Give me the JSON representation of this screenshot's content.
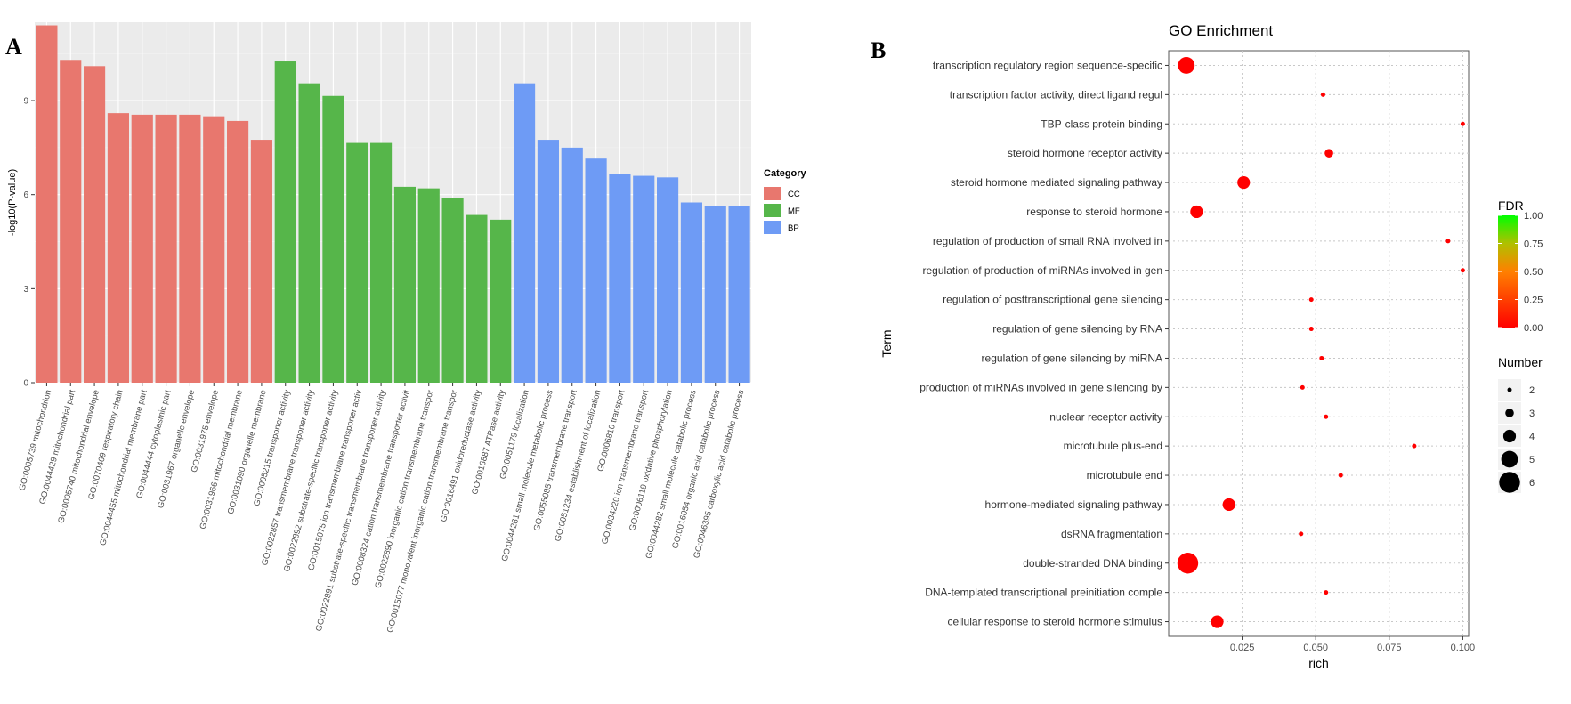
{
  "panel_labels": {
    "a": "A",
    "b": "B"
  },
  "chart_data": [
    {
      "type": "bar",
      "panel": "A",
      "title": "",
      "xlabel": "",
      "ylabel": "-log10(P-value)",
      "ylim": [
        0,
        11.5
      ],
      "yticks": [
        0,
        3,
        6,
        9
      ],
      "grid": true,
      "legend": {
        "title": "Category",
        "placement": "right",
        "entries": [
          {
            "name": "CC",
            "color": "#E8776E"
          },
          {
            "name": "MF",
            "color": "#56B64A"
          },
          {
            "name": "BP",
            "color": "#6E9BF5"
          }
        ]
      },
      "categories": [
        "GO:0005739 mitochondrion",
        "GO:0044429 mitochondrial part",
        "GO:0005740 mitochondrial envelope",
        "GO:0070469 respiratory chain",
        "GO:0044455 mitochondrial membrane part",
        "GO:0044444 cytoplasmic part",
        "GO:0031967 organelle envelope",
        "GO:0031975 envelope",
        "GO:0031966 mitochondrial membrane",
        "GO:0031090 organelle membrane",
        "GO:0005215 transporter activity",
        "GO:0022857 transmembrane transporter activity",
        "GO:0022892 substrate-specific transporter activity",
        "GO:0015075 ion transmembrane transporter activ",
        "GO:0022891 substrate-specific transmembrane transporter activity",
        "GO:0008324 cation transmembrane transporter activit",
        "GO:0022890 inorganic cation transmembrane transpor",
        "GO:0015077 monovalent inorganic cation transmembrane transpor",
        "GO:0016491 oxidoreductase activity",
        "GO:0016887 ATPase activity",
        "GO:0051179 localization",
        "GO:0044281 small molecule metabolic process",
        "GO:0055085 transmembrane transport",
        "GO:0051234 establishment of localization",
        "GO:0006810 transport",
        "GO:0034220 ion transmembrane transport",
        "GO:0006119 oxidative phosphorylation",
        "GO:0044282 small molecule catabolic process",
        "GO:0016054 organic acid catabolic process",
        "GO:0046395 carboxylic acid catabolic process"
      ],
      "groups": [
        "CC",
        "CC",
        "CC",
        "CC",
        "CC",
        "CC",
        "CC",
        "CC",
        "CC",
        "CC",
        "MF",
        "MF",
        "MF",
        "MF",
        "MF",
        "MF",
        "MF",
        "MF",
        "MF",
        "MF",
        "BP",
        "BP",
        "BP",
        "BP",
        "BP",
        "BP",
        "BP",
        "BP",
        "BP",
        "BP"
      ],
      "values": [
        11.4,
        10.3,
        10.1,
        8.6,
        8.55,
        8.55,
        8.55,
        8.5,
        8.35,
        7.75,
        10.25,
        9.55,
        9.15,
        7.65,
        7.65,
        6.25,
        6.2,
        5.9,
        5.35,
        5.2,
        9.55,
        7.75,
        7.5,
        7.15,
        6.65,
        6.6,
        6.55,
        5.75,
        5.65,
        5.65
      ]
    },
    {
      "type": "scatter",
      "panel": "B",
      "title": "GO Enrichment",
      "xlabel": "rich",
      "ylabel": "Term",
      "xlim": [
        0,
        0.102
      ],
      "xticks": [
        "0.025",
        "0.050",
        "0.075",
        "0.100"
      ],
      "grid": true,
      "color_legend": {
        "title": "FDR",
        "ticks": [
          "1.00",
          "0.75",
          "0.50",
          "0.25",
          "0.00"
        ],
        "low_color": "#ff0000",
        "high_color": "#00ff00"
      },
      "size_legend": {
        "title": "Number",
        "values": [
          "2",
          "3",
          "4",
          "5",
          "6"
        ]
      },
      "terms": [
        "transcription regulatory region sequence-specific",
        "transcription factor activity, direct ligand regul",
        "TBP-class protein binding",
        "steroid hormone receptor activity",
        "steroid hormone mediated signaling pathway",
        "response to steroid hormone",
        "regulation of production of small RNA involved in",
        "regulation of production of miRNAs involved in gen",
        "regulation of posttranscriptional gene silencing",
        "regulation of gene silencing by RNA",
        "regulation of gene silencing by miRNA",
        "production of miRNAs involved in gene silencing by",
        "nuclear receptor activity",
        "microtubule plus-end",
        "microtubule end",
        "hormone-mediated signaling pathway",
        "dsRNA fragmentation",
        "double-stranded DNA binding",
        "DNA-templated transcriptional preinitiation comple",
        "cellular response to steroid hormone stimulus"
      ],
      "rich": [
        0.006,
        0.0525,
        0.1,
        0.0545,
        0.0255,
        0.0095,
        0.095,
        0.1,
        0.0485,
        0.0485,
        0.052,
        0.0455,
        0.0535,
        0.0835,
        0.0585,
        0.0205,
        0.045,
        0.0065,
        0.0535,
        0.0165
      ],
      "number": [
        5,
        2,
        2,
        3,
        4,
        4,
        2,
        2,
        2,
        2,
        2,
        2,
        2,
        2,
        2,
        4,
        2,
        6,
        2,
        4
      ],
      "fdr": [
        0.0,
        0.0,
        0.0,
        0.0,
        0.0,
        0.0,
        0.0,
        0.0,
        0.0,
        0.0,
        0.0,
        0.0,
        0.0,
        0.0,
        0.0,
        0.0,
        0.0,
        0.0,
        0.0,
        0.0
      ]
    }
  ]
}
